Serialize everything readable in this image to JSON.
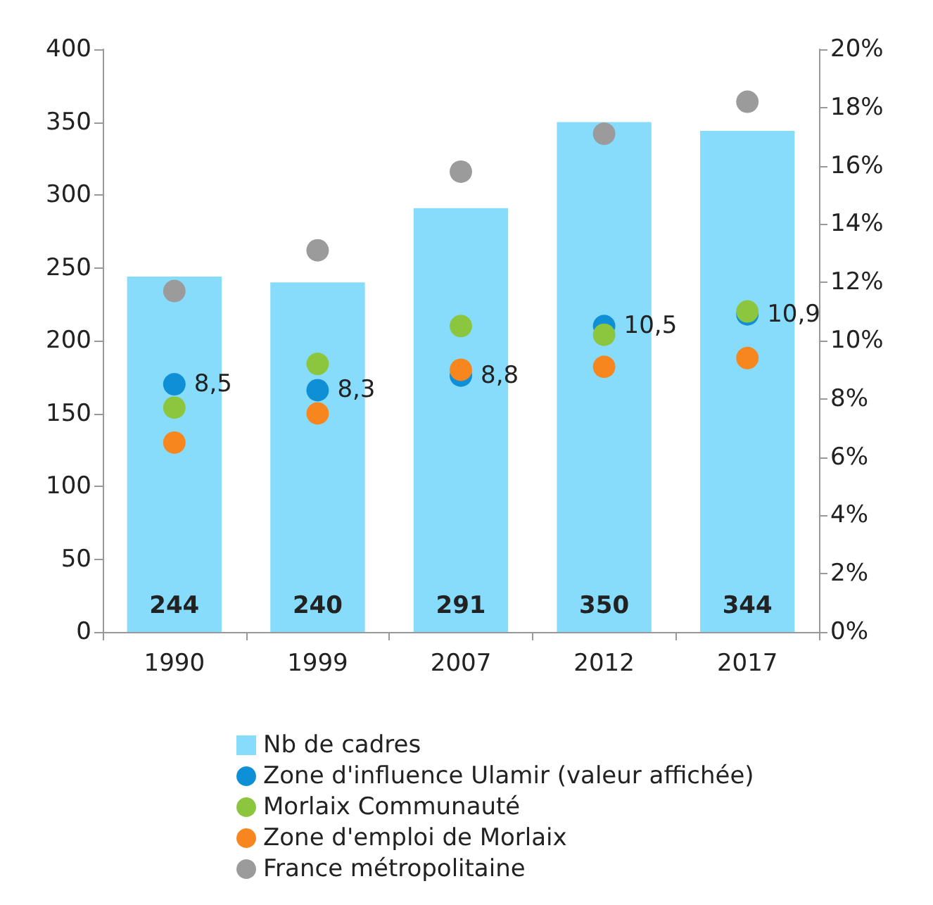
{
  "chart_data": {
    "type": "bar",
    "categories": [
      "1990",
      "1999",
      "2007",
      "2012",
      "2017"
    ],
    "series": [
      {
        "name": "Nb de cadres",
        "color": "#87dcfc",
        "values": [
          244,
          240,
          291,
          350,
          344
        ],
        "value_labels": [
          "244",
          "240",
          "291",
          "350",
          "344"
        ]
      },
      {
        "name": "Zone d'influence Ulamir (valeur affichée)",
        "type": "scatter",
        "axis": "y2",
        "color": "#0e8fd6",
        "values": [
          8.5,
          8.3,
          8.8,
          10.5,
          10.9
        ],
        "value_labels": [
          "8,5",
          "8,3",
          "8,8",
          "10,5",
          "10,9"
        ]
      },
      {
        "name": "Morlaix Communauté",
        "type": "scatter",
        "axis": "y2",
        "color": "#8cc63f",
        "values": [
          7.7,
          9.2,
          10.5,
          10.2,
          11.0
        ]
      },
      {
        "name": "Zone d'emploi de Morlaix",
        "type": "scatter",
        "axis": "y2",
        "color": "#f7861e",
        "values": [
          6.5,
          7.5,
          9.0,
          9.1,
          9.4
        ]
      },
      {
        "name": "France métropolitaine",
        "type": "scatter",
        "axis": "y2",
        "color": "#9b9b9b",
        "values": [
          11.7,
          13.1,
          15.8,
          17.1,
          18.2
        ]
      }
    ],
    "ylim": [
      0,
      400
    ],
    "yticks": [
      0,
      50,
      100,
      150,
      200,
      250,
      300,
      350,
      400
    ],
    "y2lim": [
      0,
      20
    ],
    "y2ticks": [
      {
        "value": 0,
        "label": "0%"
      },
      {
        "value": 2,
        "label": "2%"
      },
      {
        "value": 4,
        "label": "4%"
      },
      {
        "value": 6,
        "label": "6%"
      },
      {
        "value": 8,
        "label": "8%"
      },
      {
        "value": 10,
        "label": "10%"
      },
      {
        "value": 12,
        "label": "12%"
      },
      {
        "value": 14,
        "label": "14%"
      },
      {
        "value": 16,
        "label": "16%"
      },
      {
        "value": 18,
        "label": "18%"
      },
      {
        "value": 20,
        "label": "20%"
      }
    ],
    "grid": false,
    "legend": "bottom",
    "marker": "circle"
  }
}
